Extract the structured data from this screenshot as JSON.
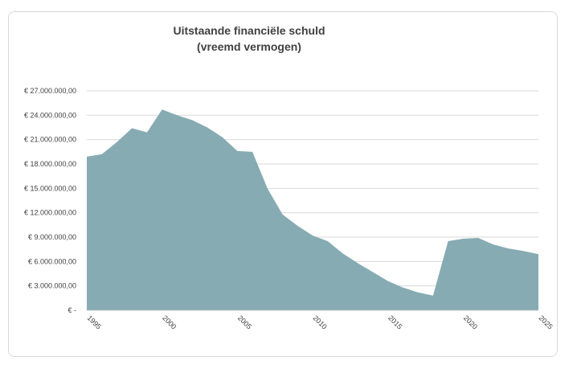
{
  "chart_data": {
    "type": "area",
    "title_line1": "Uitstaande financiële schuld",
    "title_line2": "(vreemd vermogen)",
    "xlabel": "",
    "ylabel": "",
    "x": [
      1995,
      1996,
      1997,
      1998,
      1999,
      2000,
      2001,
      2002,
      2003,
      2004,
      2005,
      2006,
      2007,
      2008,
      2009,
      2010,
      2011,
      2012,
      2013,
      2014,
      2015,
      2016,
      2017,
      2018,
      2019,
      2020,
      2021,
      2022,
      2023,
      2024,
      2025
    ],
    "values": [
      18900000,
      19200000,
      20700000,
      22400000,
      21900000,
      24700000,
      24000000,
      23400000,
      22500000,
      21300000,
      19600000,
      19500000,
      15000000,
      11800000,
      10400000,
      9200000,
      8500000,
      7000000,
      5800000,
      4700000,
      3600000,
      2800000,
      2200000,
      1800000,
      8500000,
      8800000,
      8900000,
      8100000,
      7600000,
      7300000,
      6900000
    ],
    "xlim": [
      1995,
      2025
    ],
    "ylim": [
      0,
      27000000
    ],
    "y_ticks": [
      0,
      3000000,
      6000000,
      9000000,
      12000000,
      15000000,
      18000000,
      21000000,
      24000000,
      27000000
    ],
    "y_tick_labels": [
      "€ -",
      "€ 3.000.000,00",
      "€ 6.000.000,00",
      "€ 9.000.000,00",
      "€ 12.000.000,00",
      "€ 15.000.000,00",
      "€ 18.000.000,00",
      "€ 21.000.000,00",
      "€ 24.000.000,00",
      "€ 27.000.000,00"
    ],
    "x_ticks": [
      1995,
      2000,
      2005,
      2010,
      2015,
      2020,
      2025
    ],
    "x_tick_labels": [
      "1995",
      "2000",
      "2005",
      "2010",
      "2015",
      "2020",
      "2025"
    ],
    "grid": true,
    "legend": "none",
    "colors": {
      "area": "#86abb3",
      "grid": "#d9d9d9",
      "axis": "#bfbfbf",
      "text": "#404040"
    }
  }
}
